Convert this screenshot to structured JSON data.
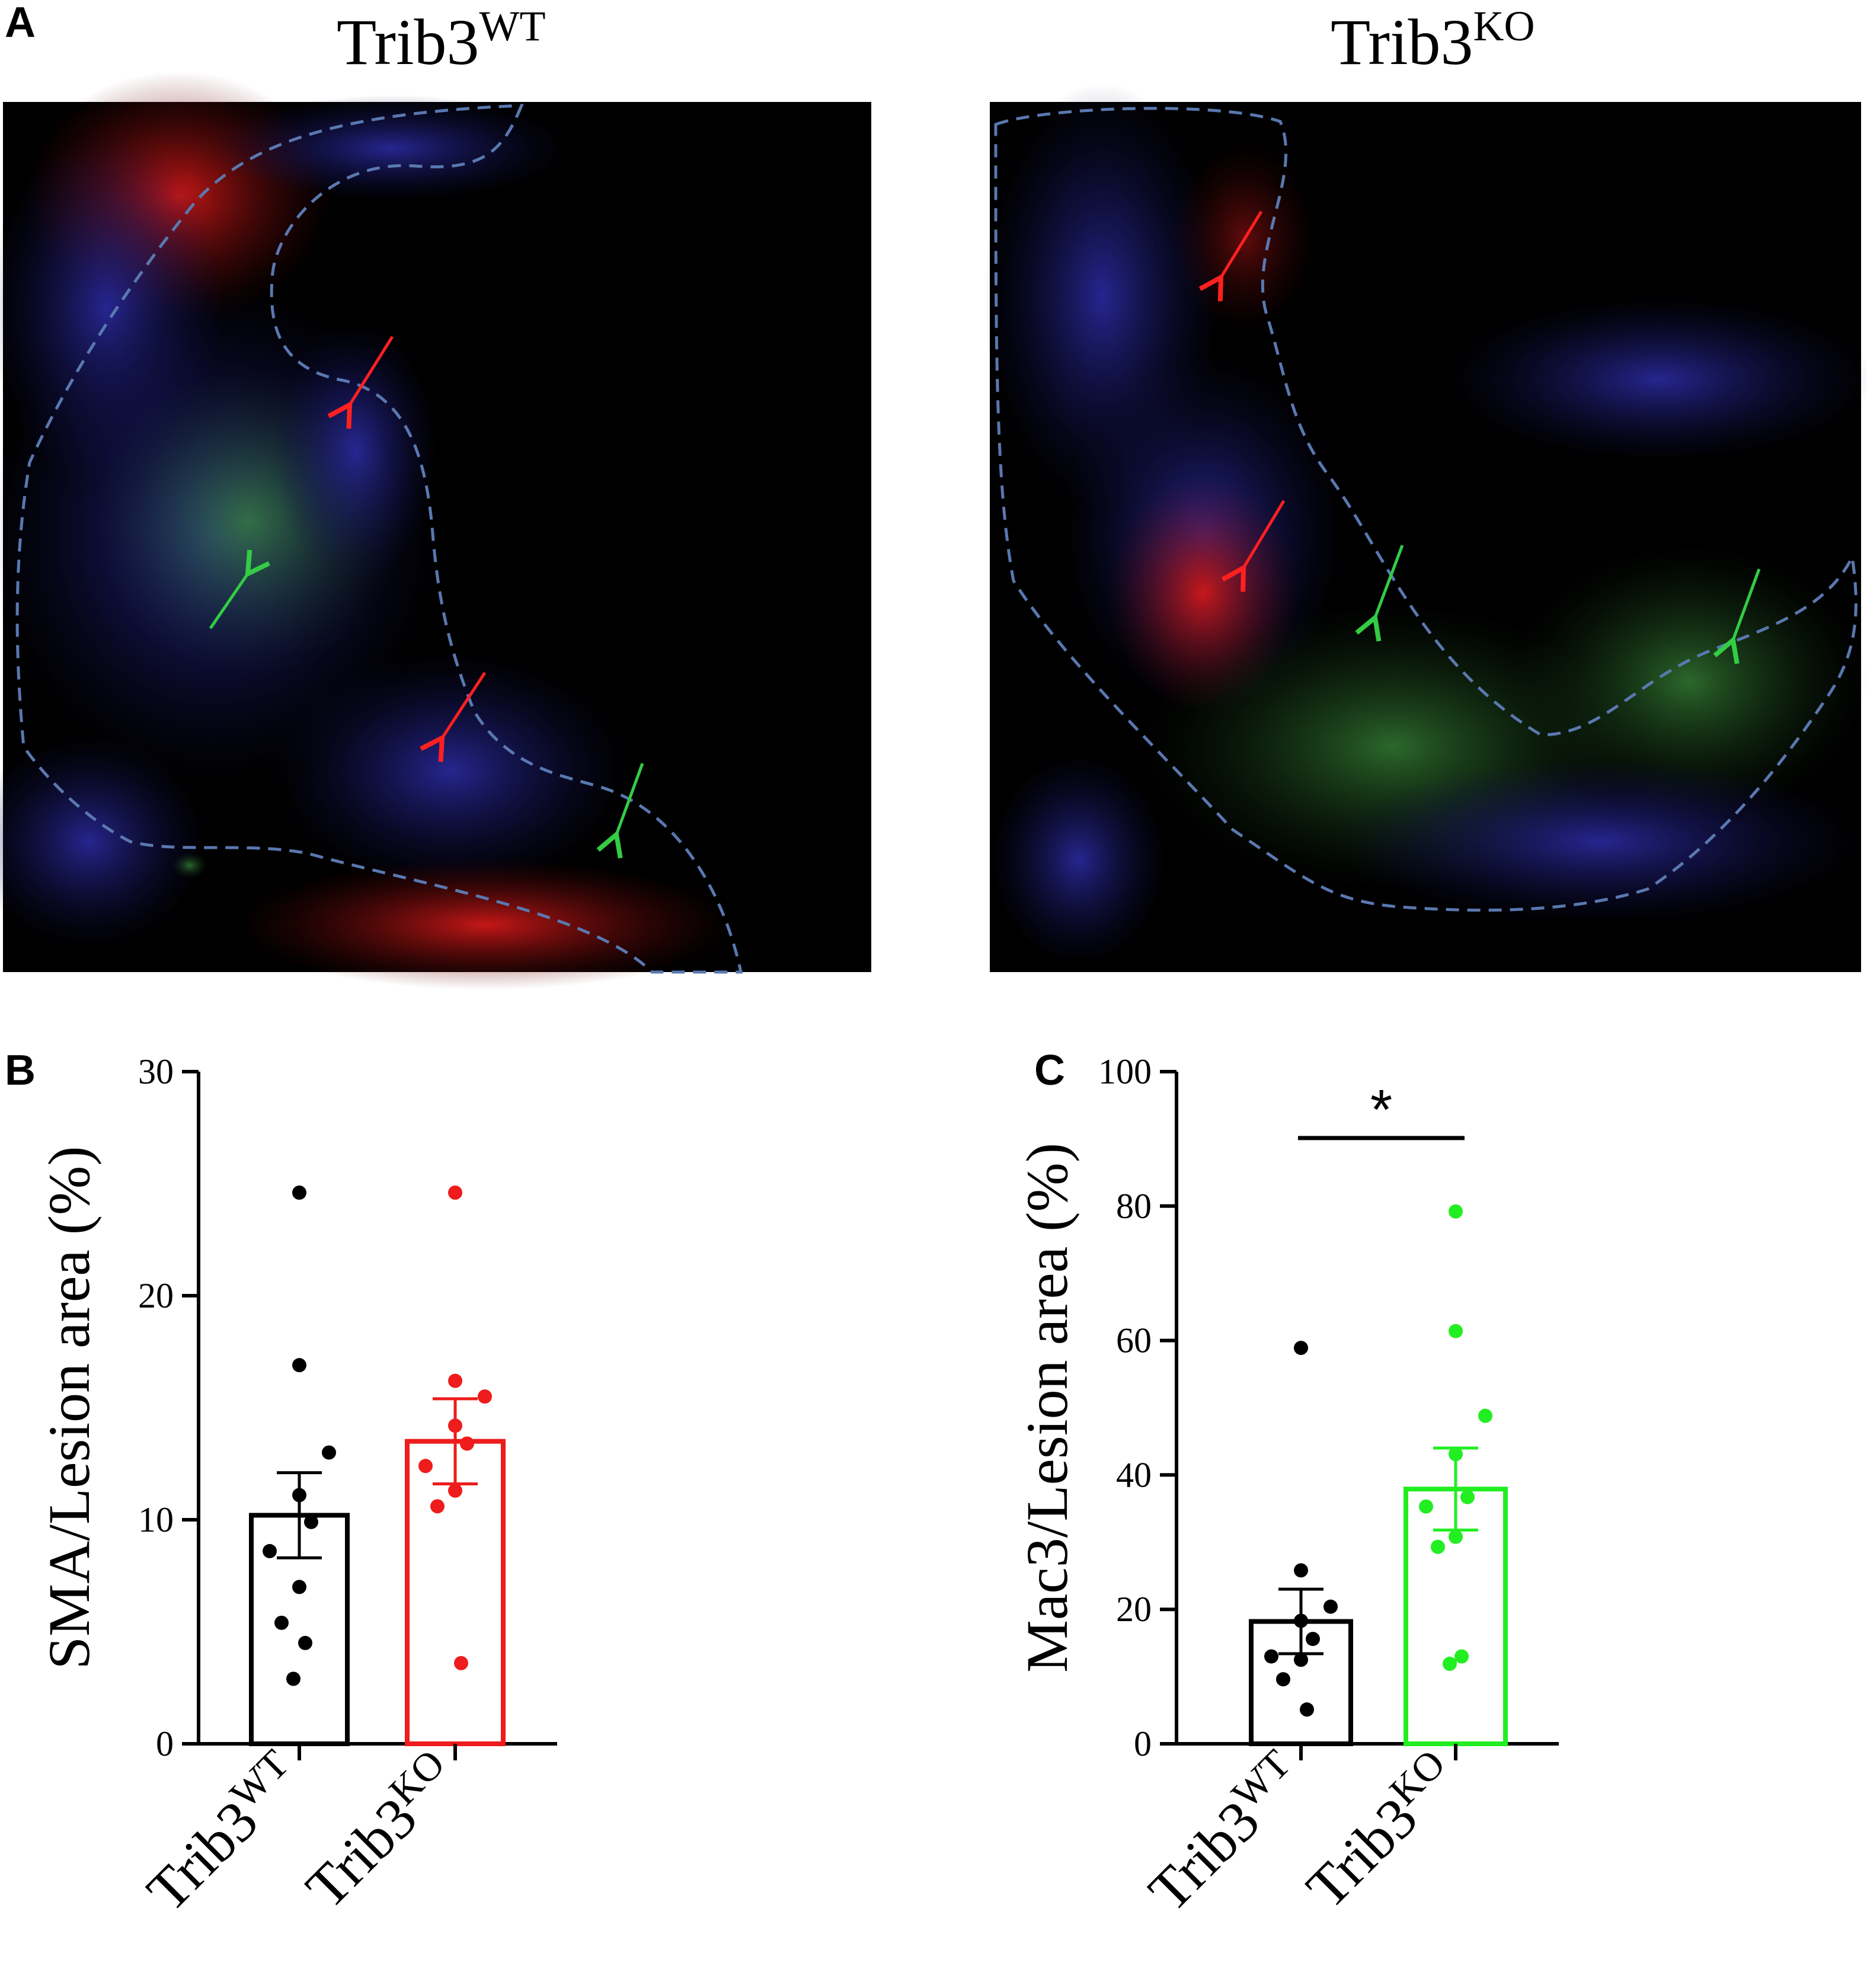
{
  "panel_letters": {
    "a": "A",
    "b": "B",
    "c": "C"
  },
  "images": [
    {
      "title_base": "Trib3",
      "title_sup": "WT",
      "description": "fluorescence micrograph"
    },
    {
      "title_base": "Trib3",
      "title_sup": "KO",
      "description": "fluorescence micrograph"
    }
  ],
  "colors": {
    "wt": "#000000",
    "ko_sma": "#ee1c1c",
    "ko_mac3": "#22ee22",
    "dashed_outline": "#5a78b0"
  },
  "chart_data": [
    {
      "type": "bar",
      "panel": "B",
      "categories": [
        {
          "base": "Trib3",
          "sup": "WT"
        },
        {
          "base": "Trib3",
          "sup": "KO"
        }
      ],
      "ylabel": "SMA/Lesion area (%)",
      "ylim": [
        0,
        30
      ],
      "yticks": [
        0,
        10,
        20,
        30
      ],
      "series": [
        {
          "category": "Trib3WT",
          "color": "#000000",
          "mean": 10.2,
          "sem": 1.9,
          "points": [
            24.6,
            16.9,
            13.0,
            11.1,
            9.9,
            8.6,
            7.0,
            5.4,
            4.5,
            2.9
          ]
        },
        {
          "category": "Trib3KO",
          "color": "#ee1c1c",
          "mean": 13.5,
          "sem": 1.9,
          "points": [
            24.6,
            16.2,
            15.5,
            14.2,
            13.4,
            12.4,
            11.3,
            10.6,
            3.6
          ]
        }
      ],
      "significance": null
    },
    {
      "type": "bar",
      "panel": "C",
      "categories": [
        {
          "base": "Trib3",
          "sup": "WT"
        },
        {
          "base": "Trib3",
          "sup": "KO"
        }
      ],
      "ylabel": "Mac3/Lesion area (%)",
      "ylim": [
        0,
        100
      ],
      "yticks": [
        0,
        20,
        40,
        60,
        80,
        100
      ],
      "series": [
        {
          "category": "Trib3WT",
          "color": "#000000",
          "mean": 18.2,
          "sem": 4.8,
          "points": [
            58.9,
            25.8,
            20.4,
            18.3,
            15.6,
            13.0,
            12.5,
            9.6,
            5.1
          ]
        },
        {
          "category": "Trib3KO",
          "color": "#22ee22",
          "mean": 37.9,
          "sem": 6.1,
          "points": [
            79.2,
            61.4,
            48.8,
            43.1,
            36.7,
            35.3,
            30.8,
            29.3,
            13.0,
            11.9
          ]
        }
      ],
      "significance": {
        "label": "*",
        "between": [
          "Trib3WT",
          "Trib3KO"
        ]
      }
    }
  ]
}
